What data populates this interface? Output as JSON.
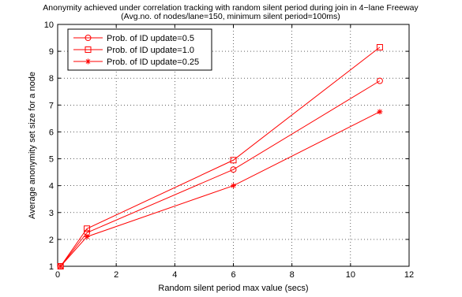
{
  "chart_data": {
    "type": "line",
    "title_lines": [
      "Anonymity achieved under correlation tracking with random silent period during join in 4−lane Freeway",
      "(Avg.no. of nodes/lane=150, minimum silent period=100ms)"
    ],
    "xlabel": "Random silent period max value (secs)",
    "ylabel": "Average anonymity set size for a node",
    "xlim": [
      0,
      12
    ],
    "ylim": [
      1,
      10
    ],
    "xticks": [
      0,
      2,
      4,
      6,
      8,
      10,
      12
    ],
    "yticks": [
      1,
      2,
      3,
      4,
      5,
      6,
      7,
      8,
      9,
      10
    ],
    "grid": "dotted",
    "legend_position": "top-left",
    "series": [
      {
        "name": "Prob. of ID update=0.5",
        "marker": "circle",
        "color": "#ff0000",
        "x": [
          0.1,
          1,
          6,
          11
        ],
        "y": [
          1.0,
          2.25,
          4.6,
          7.9
        ]
      },
      {
        "name": "Prob. of ID update=1.0",
        "marker": "square",
        "color": "#ff0000",
        "x": [
          0.1,
          1,
          6,
          11
        ],
        "y": [
          1.0,
          2.4,
          4.95,
          9.15
        ]
      },
      {
        "name": "Prob. of ID update=0.25",
        "marker": "star",
        "color": "#ff0000",
        "x": [
          0.1,
          1,
          6,
          11
        ],
        "y": [
          1.0,
          2.1,
          4.0,
          6.75
        ]
      }
    ]
  }
}
